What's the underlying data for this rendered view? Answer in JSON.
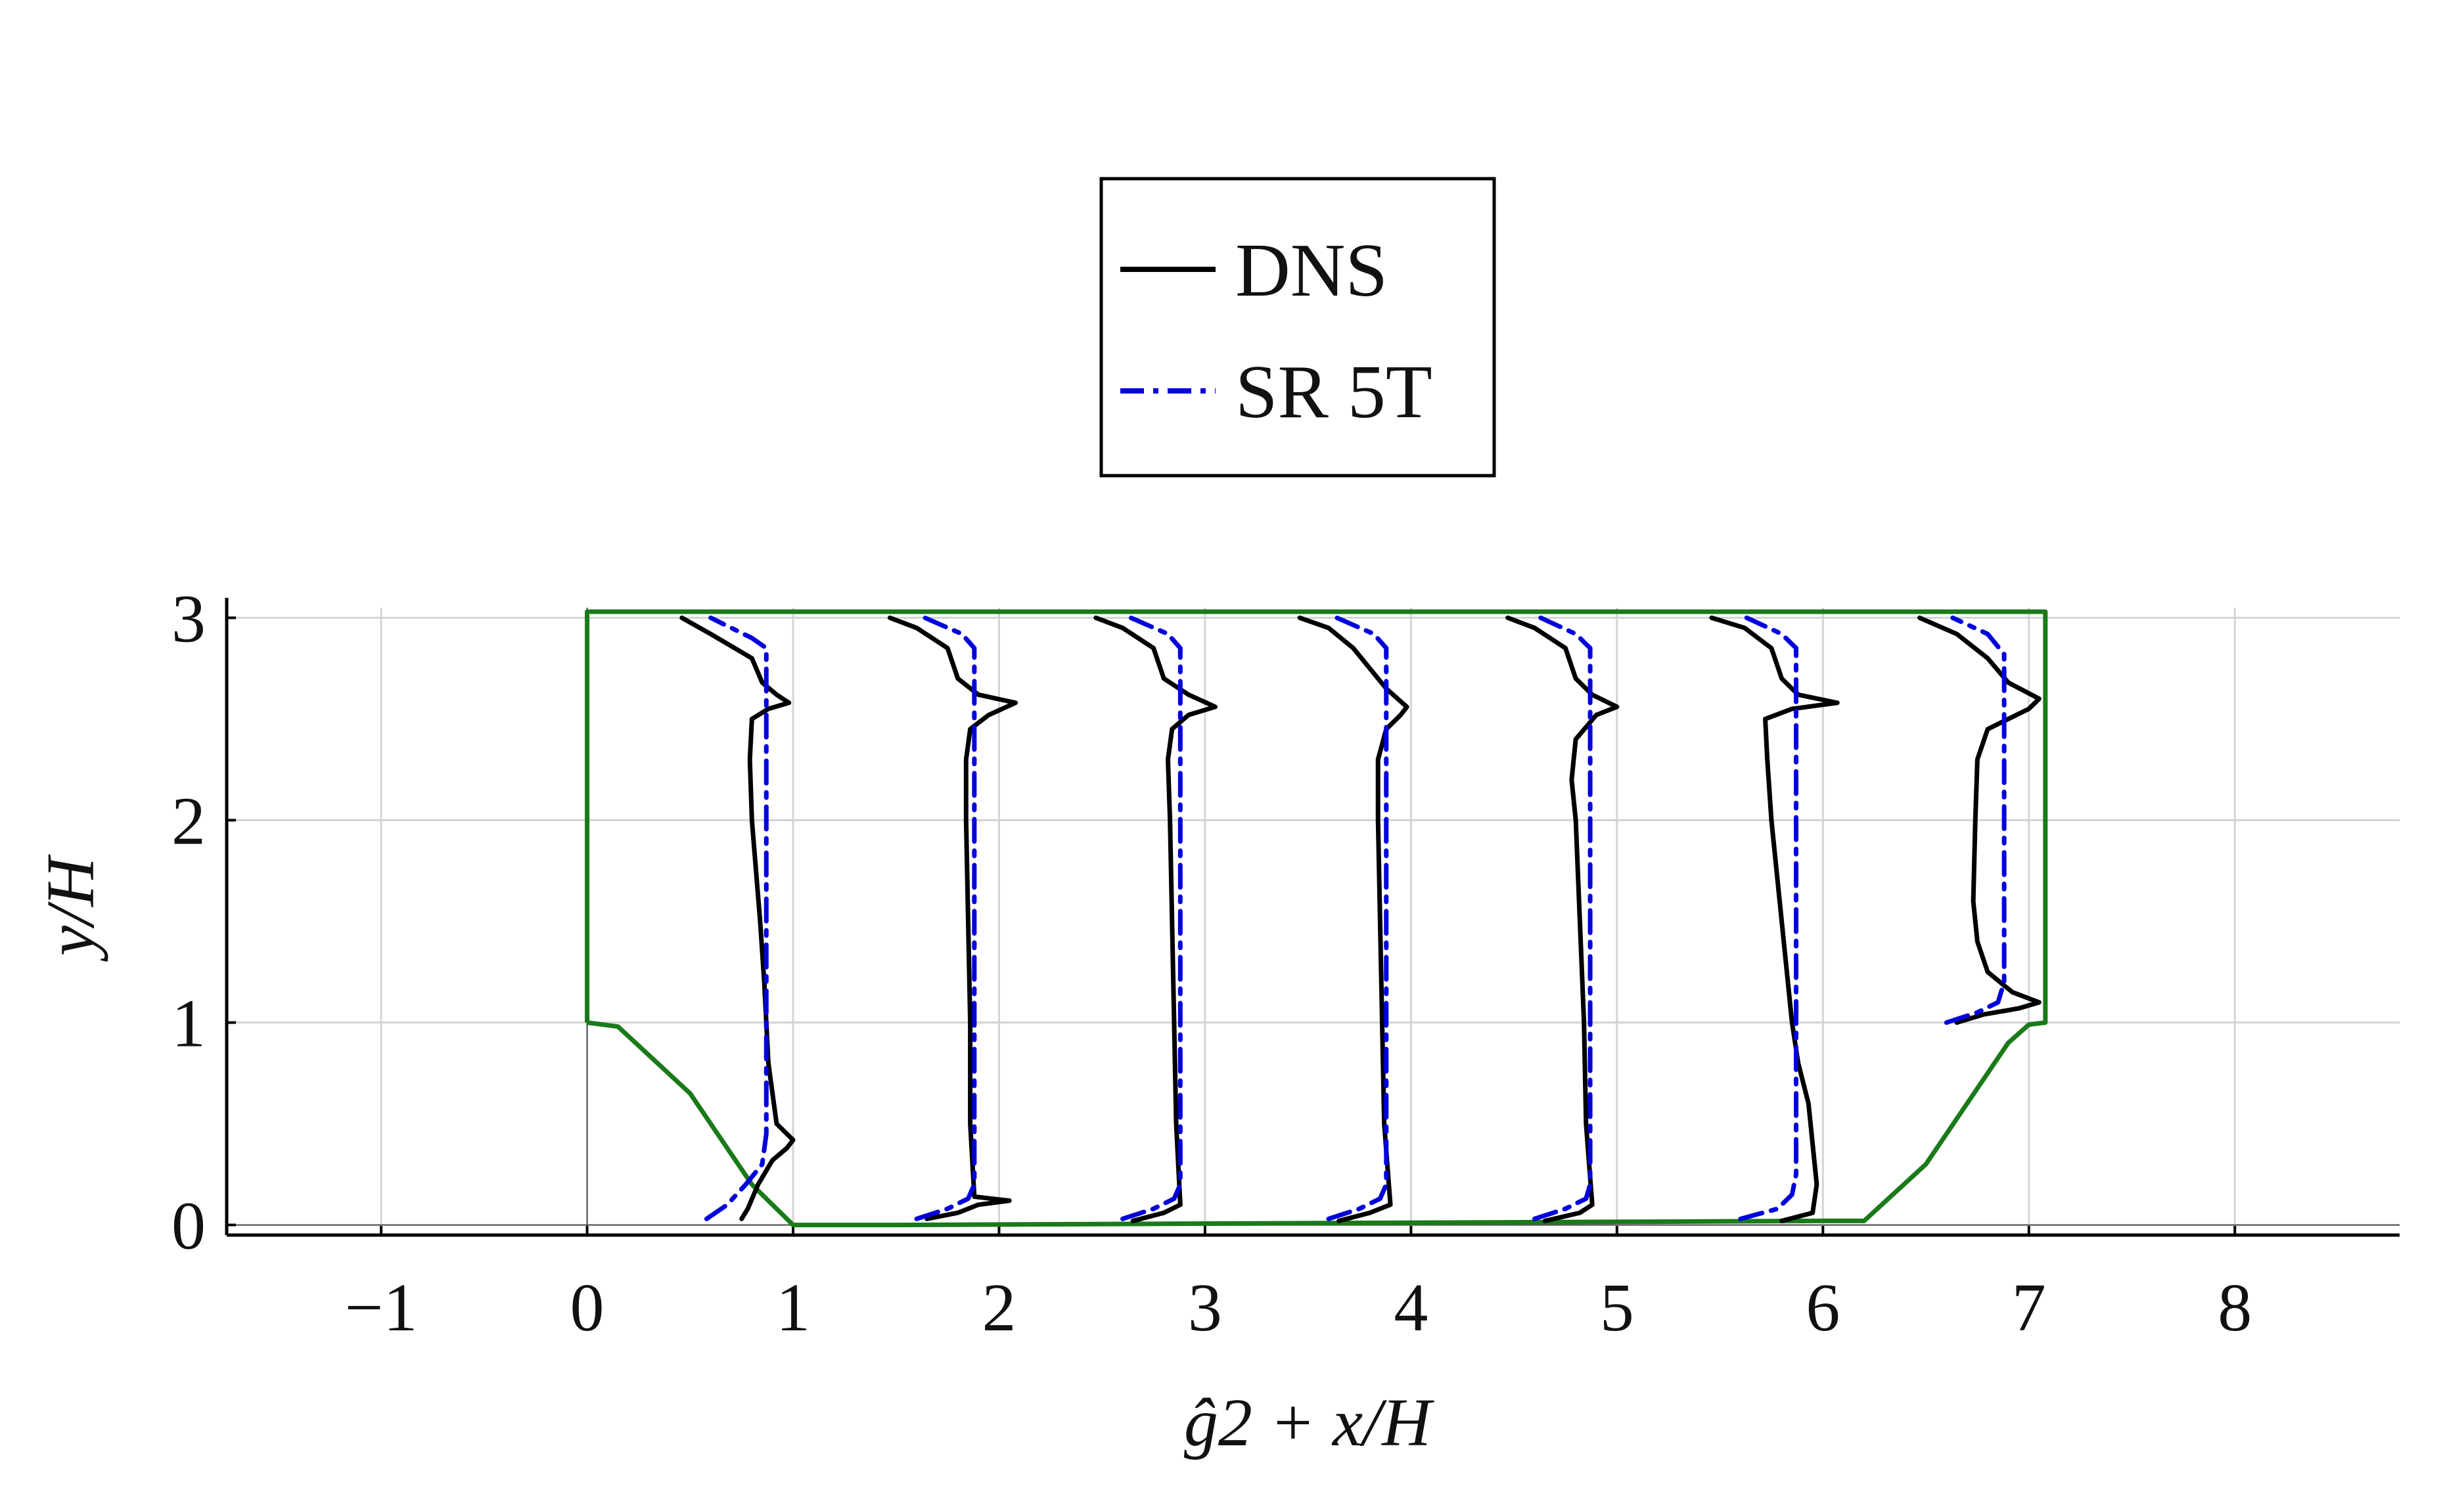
{
  "chart_data": {
    "type": "line",
    "xlabel": "ĝ2 + x/H",
    "ylabel": "y/H",
    "xlim": [
      -1.75,
      8.8
    ],
    "ylim": [
      -0.05,
      3.05
    ],
    "xticks": [
      -1,
      0,
      1,
      2,
      3,
      4,
      5,
      6,
      7,
      8
    ],
    "xtick_labels": [
      "−1",
      "0",
      "1",
      "2",
      "3",
      "4",
      "5",
      "6",
      "7",
      "8"
    ],
    "yticks": [
      0,
      1,
      2,
      3
    ],
    "ytick_labels": [
      "0",
      "1",
      "2",
      "3"
    ],
    "grid": true,
    "legend": {
      "position": "top-center",
      "entries": [
        {
          "label": "DNS",
          "color": "#000000",
          "style": "solid"
        },
        {
          "label": "SR 5T",
          "color": "#0000dd",
          "style": "dashdot"
        }
      ]
    },
    "geometry": {
      "name": "domain boundary",
      "color": "#1a7a1a",
      "x": [
        0,
        0.15,
        0.5,
        0.8,
        1.0,
        1.5,
        6.0,
        6.2,
        6.5,
        6.9,
        7.0,
        7.08,
        7.08,
        0,
        0
      ],
      "y": [
        1,
        0.98,
        0.65,
        0.2,
        0.0,
        0.0,
        0.02,
        0.02,
        0.3,
        0.9,
        0.99,
        1.0,
        3.03,
        3.03,
        1
      ]
    },
    "stations": [
      0.0,
      1.0,
      2.0,
      3.0,
      4.0,
      5.0,
      6.0
    ],
    "series": [
      {
        "name": "DNS",
        "color": "#000000",
        "profiles": [
          {
            "y": [
              0.03,
              0.08,
              0.2,
              0.32,
              0.38,
              0.42,
              0.5,
              0.8,
              1.2,
              1.5,
              2.0,
              2.3,
              2.5,
              2.55,
              2.58,
              2.62,
              2.68,
              2.8,
              2.92,
              3.0
            ],
            "x": [
              0.75,
              0.78,
              0.83,
              0.9,
              0.97,
              1.0,
              0.92,
              0.88,
              0.86,
              0.84,
              0.8,
              0.79,
              0.8,
              0.88,
              0.98,
              0.92,
              0.85,
              0.8,
              0.6,
              0.46
            ]
          },
          {
            "y": [
              0.03,
              0.06,
              0.1,
              0.12,
              0.14,
              0.5,
              1.0,
              1.5,
              2.0,
              2.3,
              2.45,
              2.52,
              2.58,
              2.62,
              2.7,
              2.85,
              2.95,
              3.0
            ],
            "x": [
              1.65,
              1.8,
              1.9,
              2.05,
              1.88,
              1.86,
              1.86,
              1.85,
              1.84,
              1.84,
              1.86,
              1.95,
              2.08,
              1.9,
              1.8,
              1.75,
              1.6,
              1.47
            ]
          },
          {
            "y": [
              0.02,
              0.06,
              0.1,
              0.5,
              1.0,
              1.5,
              2.0,
              2.3,
              2.45,
              2.52,
              2.56,
              2.62,
              2.7,
              2.85,
              2.95,
              3.0
            ],
            "x": [
              2.65,
              2.8,
              2.88,
              2.86,
              2.85,
              2.84,
              2.83,
              2.82,
              2.84,
              2.92,
              3.05,
              2.92,
              2.8,
              2.75,
              2.6,
              2.47
            ]
          },
          {
            "y": [
              0.02,
              0.06,
              0.1,
              0.5,
              1.0,
              1.5,
              2.0,
              2.3,
              2.45,
              2.52,
              2.56,
              2.65,
              2.75,
              2.85,
              2.95,
              3.0
            ],
            "x": [
              3.65,
              3.8,
              3.9,
              3.87,
              3.86,
              3.85,
              3.84,
              3.84,
              3.88,
              3.95,
              3.98,
              3.88,
              3.8,
              3.72,
              3.6,
              3.46
            ]
          },
          {
            "y": [
              0.02,
              0.06,
              0.1,
              0.5,
              1.0,
              1.5,
              2.0,
              2.2,
              2.4,
              2.52,
              2.56,
              2.62,
              2.7,
              2.85,
              2.95,
              3.0
            ],
            "x": [
              4.65,
              4.82,
              4.88,
              4.85,
              4.84,
              4.82,
              4.8,
              4.78,
              4.8,
              4.9,
              5.0,
              4.88,
              4.8,
              4.75,
              4.6,
              4.47
            ]
          },
          {
            "y": [
              0.02,
              0.06,
              0.2,
              0.4,
              0.6,
              0.8,
              1.0,
              1.5,
              2.0,
              2.3,
              2.5,
              2.55,
              2.58,
              2.62,
              2.7,
              2.85,
              2.95,
              3.0
            ],
            "x": [
              5.8,
              5.95,
              5.97,
              5.95,
              5.93,
              5.88,
              5.85,
              5.8,
              5.75,
              5.73,
              5.72,
              5.85,
              6.07,
              5.88,
              5.8,
              5.75,
              5.62,
              5.46
            ]
          },
          {
            "y": [
              1.0,
              1.04,
              1.07,
              1.1,
              1.15,
              1.25,
              1.4,
              1.6,
              2.0,
              2.3,
              2.45,
              2.5,
              2.55,
              2.6,
              2.68,
              2.8,
              2.92,
              3.0
            ],
            "x": [
              6.65,
              6.78,
              6.95,
              7.05,
              6.92,
              6.8,
              6.75,
              6.73,
              6.74,
              6.75,
              6.8,
              6.9,
              7.0,
              7.05,
              6.9,
              6.8,
              6.65,
              6.47
            ]
          }
        ]
      },
      {
        "name": "SR 5T",
        "color": "#0000dd",
        "profiles": [
          {
            "y": [
              0.03,
              0.1,
              0.2,
              0.3,
              0.45,
              0.6,
              1.0,
              1.5,
              2.0,
              2.5,
              2.85,
              2.9,
              3.0
            ],
            "x": [
              0.58,
              0.68,
              0.77,
              0.85,
              0.87,
              0.87,
              0.87,
              0.87,
              0.87,
              0.87,
              0.87,
              0.8,
              0.6
            ]
          },
          {
            "y": [
              0.03,
              0.08,
              0.13,
              0.2,
              0.5,
              1.0,
              1.5,
              2.0,
              2.5,
              2.85,
              2.92,
              3.0
            ],
            "x": [
              1.6,
              1.75,
              1.85,
              1.88,
              1.88,
              1.88,
              1.88,
              1.88,
              1.88,
              1.88,
              1.82,
              1.64
            ]
          },
          {
            "y": [
              0.03,
              0.08,
              0.13,
              0.2,
              0.5,
              1.0,
              1.5,
              2.0,
              2.5,
              2.85,
              2.92,
              3.0
            ],
            "x": [
              2.6,
              2.75,
              2.85,
              2.88,
              2.88,
              2.88,
              2.88,
              2.88,
              2.88,
              2.88,
              2.82,
              2.64
            ]
          },
          {
            "y": [
              0.03,
              0.08,
              0.13,
              0.2,
              0.5,
              1.0,
              1.5,
              2.0,
              2.5,
              2.85,
              2.92,
              3.0
            ],
            "x": [
              3.6,
              3.75,
              3.85,
              3.88,
              3.88,
              3.88,
              3.88,
              3.88,
              3.88,
              3.88,
              3.82,
              3.64
            ]
          },
          {
            "y": [
              0.03,
              0.08,
              0.13,
              0.2,
              0.5,
              1.0,
              1.5,
              2.0,
              2.5,
              2.85,
              2.92,
              3.0
            ],
            "x": [
              4.6,
              4.75,
              4.85,
              4.87,
              4.87,
              4.87,
              4.87,
              4.87,
              4.87,
              4.87,
              4.8,
              4.63
            ]
          },
          {
            "y": [
              0.03,
              0.08,
              0.15,
              0.25,
              0.5,
              1.0,
              1.5,
              2.0,
              2.5,
              2.85,
              2.92,
              3.0
            ],
            "x": [
              5.6,
              5.78,
              5.85,
              5.87,
              5.87,
              5.87,
              5.87,
              5.87,
              5.87,
              5.87,
              5.8,
              5.63
            ]
          },
          {
            "y": [
              1.0,
              1.05,
              1.1,
              1.2,
              1.5,
              2.0,
              2.5,
              2.82,
              2.92,
              3.0
            ],
            "x": [
              6.6,
              6.75,
              6.85,
              6.88,
              6.88,
              6.88,
              6.88,
              6.88,
              6.8,
              6.63
            ]
          }
        ]
      }
    ]
  }
}
